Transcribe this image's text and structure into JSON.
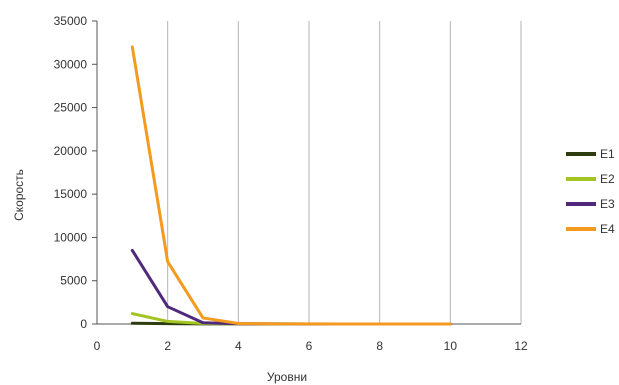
{
  "chart_data": {
    "type": "line",
    "title": "",
    "xlabel": "Уровни",
    "ylabel": "Скорость",
    "xlim": [
      0,
      12
    ],
    "ylim": [
      0,
      35000
    ],
    "xticks": [
      0,
      2,
      4,
      6,
      8,
      10,
      12
    ],
    "yticks": [
      0,
      5000,
      10000,
      15000,
      20000,
      25000,
      30000,
      35000
    ],
    "grid": {
      "vertical": true,
      "horizontal": false
    },
    "legend_position": "right",
    "x": [
      1,
      2,
      3,
      4,
      5,
      6,
      7,
      8,
      9,
      10
    ],
    "series": [
      {
        "name": "E1",
        "color": "#2e3d0e",
        "values": [
          80,
          40,
          20,
          10,
          5,
          3,
          2,
          1,
          1,
          1
        ]
      },
      {
        "name": "E2",
        "color": "#a2c524",
        "values": [
          1200,
          300,
          60,
          20,
          10,
          5,
          3,
          2,
          1,
          1
        ]
      },
      {
        "name": "E3",
        "color": "#4f2a7a",
        "values": [
          8500,
          2000,
          150,
          30,
          10,
          5,
          3,
          2,
          1,
          1
        ]
      },
      {
        "name": "E4",
        "color": "#f39a1f",
        "values": [
          32000,
          7200,
          700,
          60,
          15,
          8,
          5,
          3,
          2,
          1
        ]
      }
    ]
  }
}
